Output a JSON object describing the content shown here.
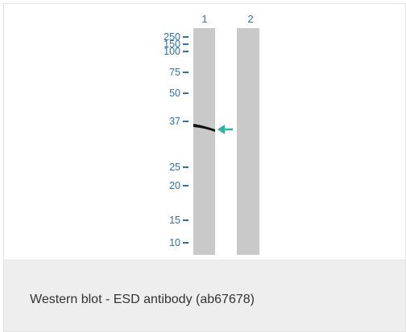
{
  "figure": {
    "lanes": [
      {
        "label": "1"
      },
      {
        "label": "2"
      }
    ],
    "markers": [
      "250",
      "150",
      "100",
      "75",
      "50",
      "37",
      "25",
      "20",
      "15",
      "10"
    ],
    "band_marker": "37",
    "colors": {
      "label_blue": "#2f6fae",
      "lane_gray": "#c9c9c9",
      "arrow_teal": "#2bb3a3",
      "band": "#111111"
    }
  },
  "caption": {
    "text": "Western blot - ESD antibody (ab67678)"
  }
}
